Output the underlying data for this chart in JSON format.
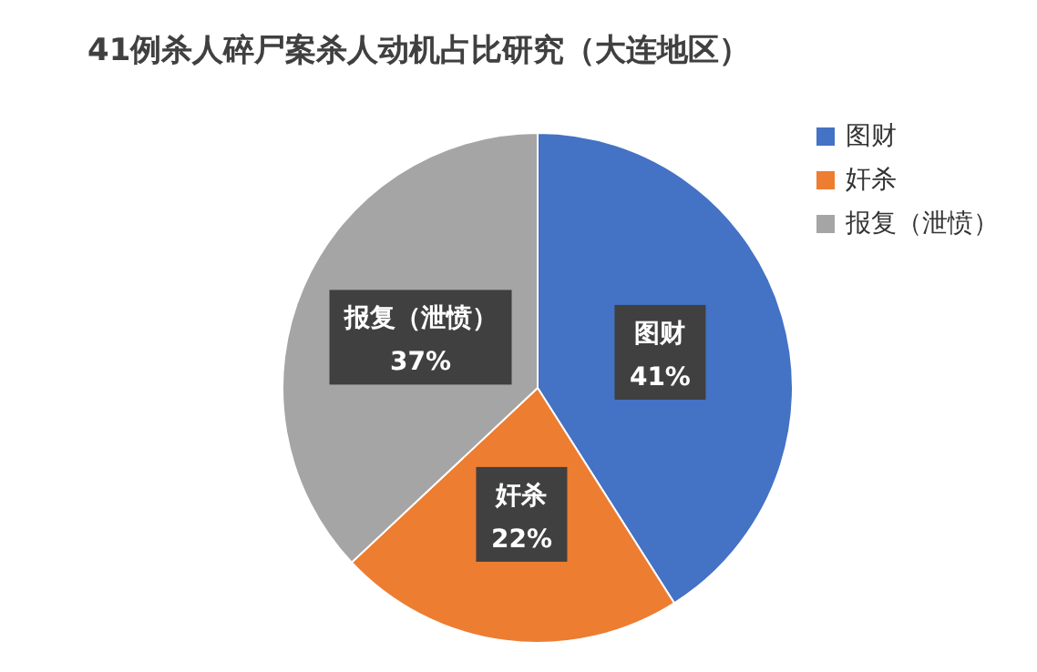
{
  "chart_data": {
    "type": "pie",
    "title": "41例杀人碎尸案杀人动机占比研究（大连地区）",
    "categories": [
      "图财",
      "奸杀",
      "报复（泄愤）"
    ],
    "values": [
      41,
      22,
      37
    ],
    "colors": [
      "#4472c4",
      "#ed7d31",
      "#a5a5a5"
    ],
    "value_labels": [
      "41%",
      "22%",
      "37%"
    ],
    "legend": "top right"
  }
}
